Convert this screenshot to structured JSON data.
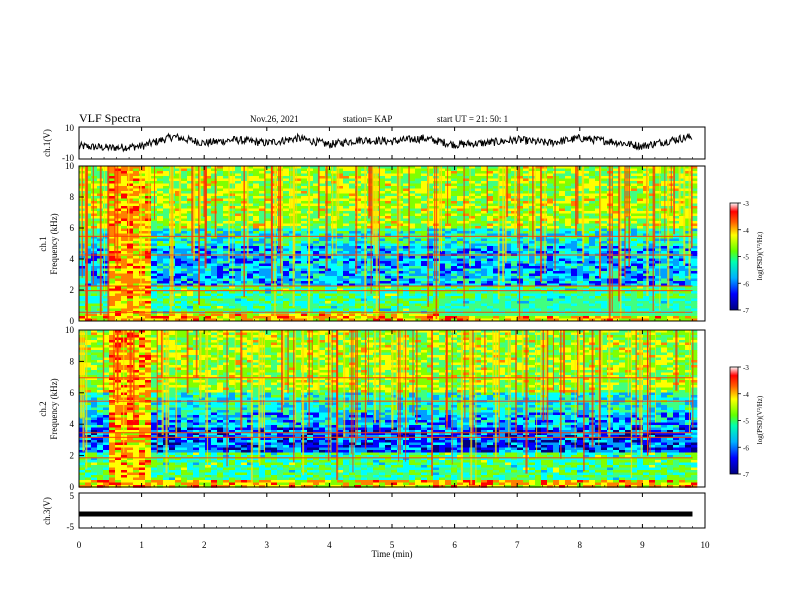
{
  "header": {
    "title": "VLF Spectra",
    "date": "Nov.26, 2021",
    "station": "station= KAP",
    "start": "start  UT =  21: 50: 1"
  },
  "chart_data": [
    {
      "type": "line",
      "panel": "ch1-waveform",
      "ylabel": "ch.1(V)",
      "ylim": [
        -10,
        10
      ],
      "yticks": [
        "10",
        "-10"
      ],
      "xlim": [
        0,
        10
      ],
      "note": "noisy baseline signal fluctuating roughly between -8 and 8 V",
      "series": [
        {
          "x": [
            0,
            0.5,
            1,
            1.5,
            2,
            2.5,
            3,
            3.5,
            4,
            4.5,
            5,
            5.5,
            6,
            6.5,
            7,
            7.5,
            8,
            8.5,
            9,
            9.5,
            9.8
          ],
          "values": [
            -2,
            -3,
            -2,
            4,
            0,
            2,
            0,
            3,
            -1,
            2,
            1,
            3,
            -1,
            0,
            2,
            0,
            3,
            1,
            -2,
            2,
            4
          ]
        }
      ]
    },
    {
      "type": "heatmap",
      "panel": "ch1-spectrogram",
      "ylabel": "ch.1\nFrequency (kHz)",
      "ylim": [
        0,
        10
      ],
      "yticks": [
        "0",
        "2",
        "4",
        "6",
        "8",
        "10"
      ],
      "xlim": [
        0,
        10
      ],
      "colorbar": {
        "label": "log(PSD)(V²/Hz)",
        "range": [
          -7,
          -3
        ],
        "ticks": [
          "-3",
          "-4",
          "-5",
          "-6",
          "-7"
        ]
      }
    },
    {
      "type": "heatmap",
      "panel": "ch2-spectrogram",
      "ylabel": "ch.2\nFrequency (kHz)",
      "ylim": [
        0,
        10
      ],
      "yticks": [
        "0",
        "2",
        "4",
        "6",
        "8",
        "10"
      ],
      "xlim": [
        0,
        10
      ],
      "colorbar": {
        "label": "log(PSD)(V²/Hz)",
        "range": [
          -7,
          -3
        ],
        "ticks": [
          "-3",
          "-4",
          "-5",
          "-6",
          "-7"
        ]
      }
    },
    {
      "type": "line",
      "panel": "ch3-waveform",
      "ylabel": "ch.3(V)",
      "ylim": [
        -5,
        5
      ],
      "yticks": [
        "5",
        "0",
        "-5"
      ],
      "xlim": [
        0,
        10
      ],
      "note": "nearly constant thick line around -1 V",
      "series": [
        {
          "x": [
            0,
            9.8
          ],
          "values": [
            -1,
            -1
          ]
        }
      ]
    }
  ],
  "xaxis": {
    "label": "Time  (min)",
    "ticks": [
      "0",
      "1",
      "2",
      "3",
      "4",
      "5",
      "6",
      "7",
      "8",
      "9",
      "10"
    ]
  },
  "colors": {
    "colormap": [
      "#000080",
      "#0000ff",
      "#00a0ff",
      "#00ffff",
      "#40ff80",
      "#80ff00",
      "#ffff00",
      "#ff8000",
      "#ff0000",
      "#ffffff"
    ]
  }
}
